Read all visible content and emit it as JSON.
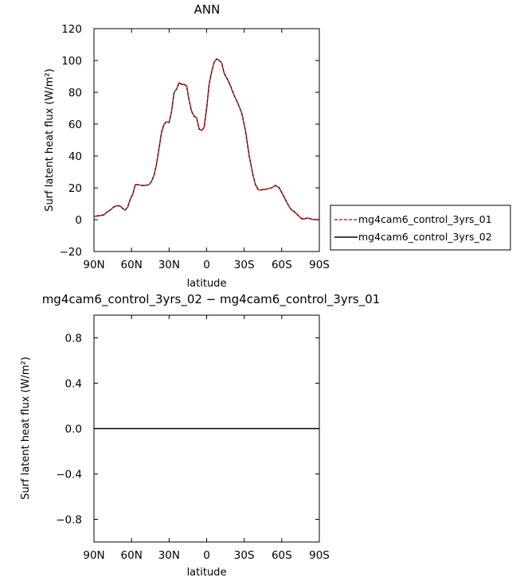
{
  "chart_data": [
    {
      "type": "line",
      "title": "ANN",
      "xlabel": "latitude",
      "ylabel": "Surf latent heat flux (W/m²)",
      "ylim": [
        -20,
        120
      ],
      "xlim": [
        90,
        -90
      ],
      "x_ticks": [
        90,
        60,
        30,
        0,
        -30,
        -60,
        -90
      ],
      "x_tick_labels": [
        "90N",
        "60N",
        "30N",
        "0",
        "30S",
        "60S",
        "90S"
      ],
      "y_ticks": [
        -20,
        0,
        20,
        40,
        60,
        80,
        100,
        120
      ],
      "y_tick_labels": [
        "−20",
        "0",
        "20",
        "40",
        "60",
        "80",
        "100",
        "120"
      ],
      "legend_position": "right",
      "series": [
        {
          "name": "mg4cam6_control_3yrs_01",
          "color": "#d62020",
          "dash": "dashed",
          "x": [
            90,
            86,
            82,
            80,
            77,
            75,
            73,
            71,
            69,
            67,
            65,
            63,
            61,
            59,
            57,
            55,
            52,
            49,
            46,
            44,
            42,
            40,
            38,
            36,
            34,
            32,
            30,
            28,
            26,
            24,
            22,
            20,
            18,
            16,
            14,
            12,
            10,
            8,
            6,
            4,
            2,
            0,
            -2,
            -4,
            -6,
            -8,
            -10,
            -12,
            -14,
            -16,
            -18,
            -20,
            -22,
            -25,
            -28,
            -31,
            -34,
            -37,
            -39,
            -41,
            -43,
            -45,
            -47,
            -49,
            -52,
            -55,
            -58,
            -60,
            -62,
            -64,
            -66,
            -68,
            -70,
            -72,
            -74,
            -76,
            -78,
            -80,
            -82,
            -84,
            -86,
            -88,
            -90
          ],
          "y": [
            2,
            2.5,
            3,
            4.5,
            6,
            7.5,
            8.5,
            8.8,
            8.5,
            7,
            6,
            8,
            13,
            16,
            22,
            22,
            21.5,
            21.5,
            22,
            24,
            28,
            35,
            45,
            55,
            60,
            61.5,
            61,
            68,
            80,
            82,
            86,
            85,
            85,
            84,
            75,
            68,
            65,
            64,
            57,
            56,
            58,
            70,
            85,
            93,
            99,
            101,
            100,
            98.5,
            92,
            89,
            86,
            82,
            78,
            73,
            67,
            56,
            40,
            28,
            22,
            19,
            18.5,
            19,
            19,
            19.5,
            20,
            21.5,
            20,
            17,
            14,
            11,
            8,
            6,
            5,
            3.5,
            2,
            0.5,
            0.5,
            1,
            0.8,
            0.3,
            0.1,
            0,
            0
          ]
        },
        {
          "name": "mg4cam6_control_3yrs_02",
          "color": "#000000",
          "dash": "solid",
          "x": [
            90,
            86,
            82,
            80,
            77,
            75,
            73,
            71,
            69,
            67,
            65,
            63,
            61,
            59,
            57,
            55,
            52,
            49,
            46,
            44,
            42,
            40,
            38,
            36,
            34,
            32,
            30,
            28,
            26,
            24,
            22,
            20,
            18,
            16,
            14,
            12,
            10,
            8,
            6,
            4,
            2,
            0,
            -2,
            -4,
            -6,
            -8,
            -10,
            -12,
            -14,
            -16,
            -18,
            -20,
            -22,
            -25,
            -28,
            -31,
            -34,
            -37,
            -39,
            -41,
            -43,
            -45,
            -47,
            -49,
            -52,
            -55,
            -58,
            -60,
            -62,
            -64,
            -66,
            -68,
            -70,
            -72,
            -74,
            -76,
            -78,
            -80,
            -82,
            -84,
            -86,
            -88,
            -90
          ],
          "y": [
            2,
            2.5,
            3,
            4.5,
            6,
            7.5,
            8.5,
            8.8,
            8.5,
            7,
            6,
            8,
            13,
            16,
            22,
            22,
            21.5,
            21.5,
            22,
            24,
            28,
            35,
            45,
            55,
            60,
            61.5,
            61,
            68,
            80,
            82,
            86,
            85,
            85,
            84,
            75,
            68,
            65,
            64,
            57,
            56,
            58,
            70,
            85,
            93,
            99,
            101,
            100,
            98.5,
            92,
            89,
            86,
            82,
            78,
            73,
            67,
            56,
            40,
            28,
            22,
            19,
            18.5,
            19,
            19,
            19.5,
            20,
            21.5,
            20,
            17,
            14,
            11,
            8,
            6,
            5,
            3.5,
            2,
            0.5,
            0.5,
            1,
            0.8,
            0.3,
            0.1,
            0,
            0
          ]
        }
      ]
    },
    {
      "type": "line",
      "title": "mg4cam6_control_3yrs_02 − mg4cam6_control_3yrs_01",
      "xlabel": "latitude",
      "ylabel": "Surf latent heat flux (W/m²)",
      "ylim": [
        -1,
        1
      ],
      "xlim": [
        90,
        -90
      ],
      "x_ticks": [
        90,
        60,
        30,
        0,
        -30,
        -60,
        -90
      ],
      "x_tick_labels": [
        "90N",
        "60N",
        "30N",
        "0",
        "30S",
        "60S",
        "90S"
      ],
      "y_ticks": [
        -0.8,
        -0.4,
        0,
        0.4,
        0.8
      ],
      "y_tick_labels": [
        "−0.8",
        "−0.4",
        "0.0",
        "0.4",
        "0.8"
      ],
      "series": [
        {
          "color": "#000000",
          "dash": "solid",
          "x": [
            90,
            -90
          ],
          "y": [
            0,
            0
          ]
        }
      ]
    }
  ]
}
